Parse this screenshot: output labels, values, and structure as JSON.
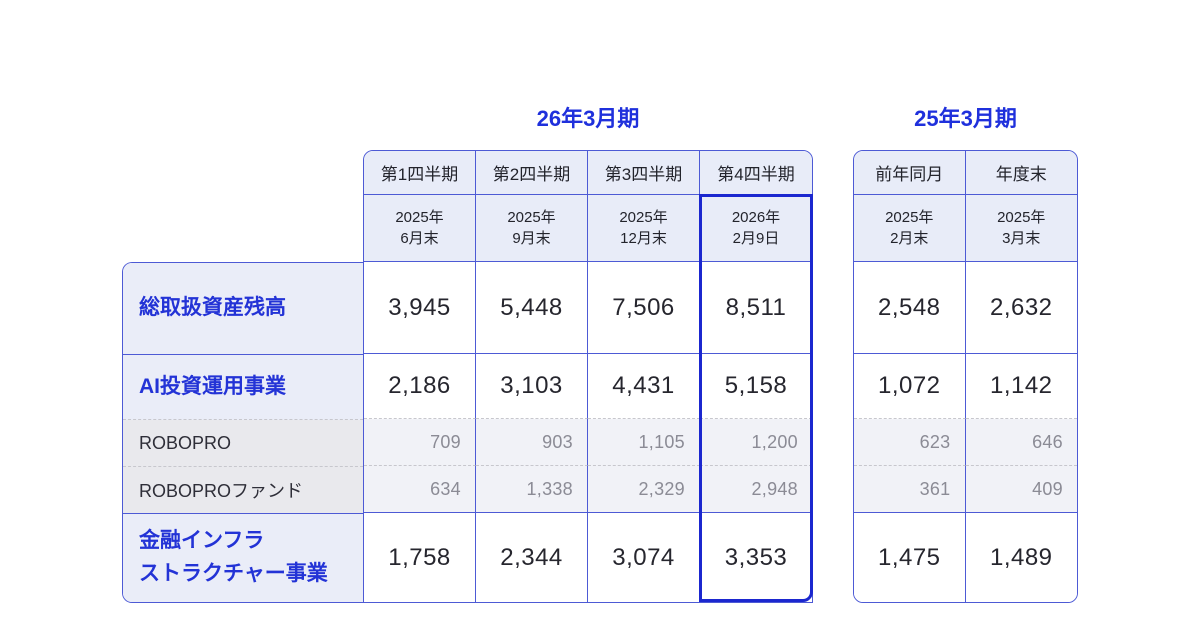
{
  "left_group": {
    "title": "26年3月期",
    "columns": [
      {
        "label": "第1四半期",
        "date": "2025年\n6月末"
      },
      {
        "label": "第2四半期",
        "date": "2025年\n9月末"
      },
      {
        "label": "第3四半期",
        "date": "2025年\n12月末"
      },
      {
        "label": "第4四半期",
        "date": "2026年\n2月9日",
        "highlighted": true
      }
    ]
  },
  "right_group": {
    "title": "25年3月期",
    "columns": [
      {
        "label": "前年同月",
        "date": "2025年\n2月末"
      },
      {
        "label": "年度末",
        "date": "2025年\n3月末"
      }
    ]
  },
  "rows": [
    {
      "label": "総取扱資産残高",
      "type": "primary",
      "left_values": [
        "3,945",
        "5,448",
        "7,506",
        "8,511"
      ],
      "right_values": [
        "2,548",
        "2,632"
      ]
    },
    {
      "label": "AI投資運用事業",
      "type": "primary",
      "left_values": [
        "2,186",
        "3,103",
        "4,431",
        "5,158"
      ],
      "right_values": [
        "1,072",
        "1,142"
      ]
    },
    {
      "label": "ROBOPRO",
      "type": "sub",
      "left_values": [
        "709",
        "903",
        "1,105",
        "1,200"
      ],
      "right_values": [
        "623",
        "646"
      ]
    },
    {
      "label": "ROBOPROファンド",
      "type": "sub",
      "left_values": [
        "634",
        "1,338",
        "2,329",
        "2,948"
      ],
      "right_values": [
        "361",
        "409"
      ]
    },
    {
      "label": "金融インフラ\nストラクチャー事業",
      "type": "primary",
      "left_values": [
        "1,758",
        "2,344",
        "3,074",
        "3,353"
      ],
      "right_values": [
        "1,475",
        "1,489"
      ]
    }
  ],
  "colors": {
    "accent_blue": "#1f30dc",
    "thin_border": "#4d5ad5",
    "highlight_border": "#1b27cf",
    "header_bg": "#e8ecf8",
    "label_primary_bg": "#eaedf8",
    "label_sub_bg": "#e9e9ed",
    "sub_value_bg": "#f1f2f7",
    "primary_text": "#26262e",
    "sub_text": "#8b8b95"
  },
  "chart_data": {
    "type": "table",
    "column_groups": [
      "26年3月期",
      "25年3月期"
    ],
    "columns": [
      "第1四半期 (2025年6月末)",
      "第2四半期 (2025年9月末)",
      "第3四半期 (2025年12月末)",
      "第4四半期 (2026年2月9日)",
      "前年同月 (2025年2月末)",
      "年度末 (2025年3月末)"
    ],
    "rows": [
      {
        "label": "総取扱資産残高",
        "values": [
          3945,
          5448,
          7506,
          8511,
          2548,
          2632
        ]
      },
      {
        "label": "AI投資運用事業",
        "values": [
          2186,
          3103,
          4431,
          5158,
          1072,
          1142
        ]
      },
      {
        "label": "ROBOPRO",
        "values": [
          709,
          903,
          1105,
          1200,
          623,
          646
        ]
      },
      {
        "label": "ROBOPROファンド",
        "values": [
          634,
          1338,
          2329,
          2948,
          361,
          409
        ]
      },
      {
        "label": "金融インフラストラクチャー事業",
        "values": [
          1758,
          2344,
          3074,
          3353,
          1475,
          1489
        ]
      }
    ],
    "highlighted_column": "第4四半期 (2026年2月9日)",
    "legend_position": "none",
    "grid": true
  }
}
